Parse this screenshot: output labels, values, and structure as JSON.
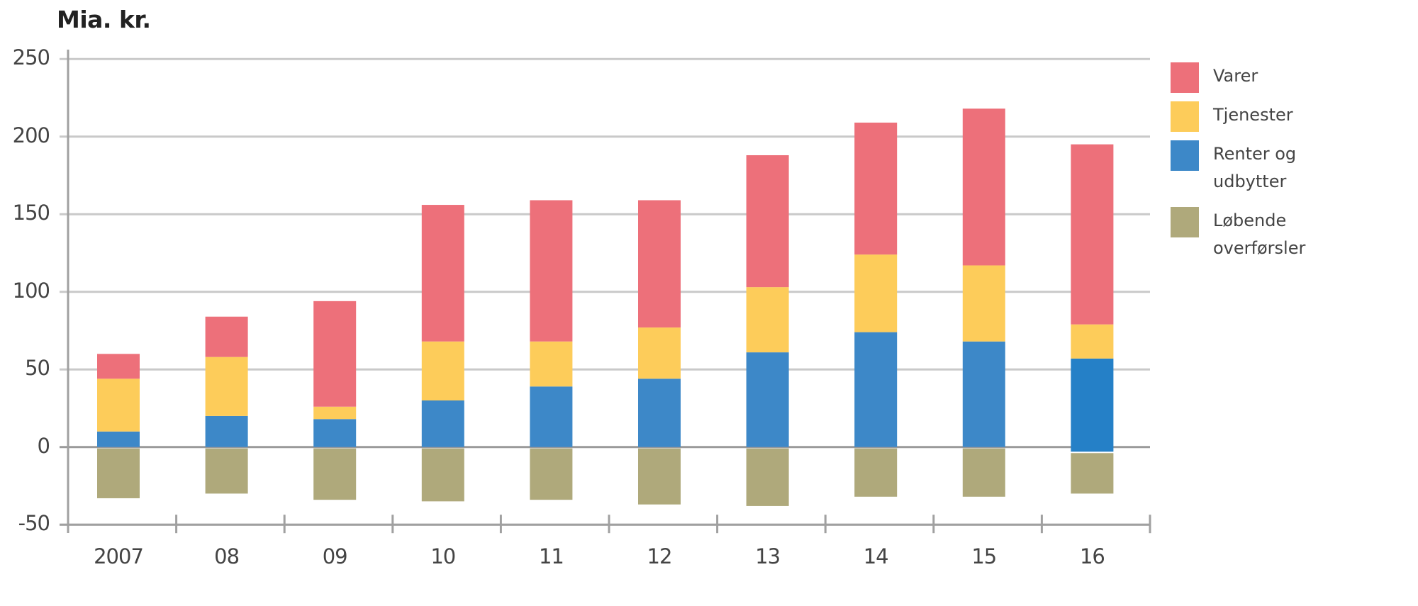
{
  "chart_data": {
    "type": "bar",
    "stacked": true,
    "title": "Mia. kr.",
    "xlabel": "",
    "ylabel": "Mia. kr.",
    "ylim": [
      -50,
      250
    ],
    "yticks": [
      250,
      200,
      150,
      100,
      50,
      0,
      -50
    ],
    "grid": true,
    "legend_position": "right",
    "categories": [
      "2007",
      "08",
      "09",
      "10",
      "11",
      "12",
      "13",
      "14",
      "15",
      "16"
    ],
    "series": [
      {
        "name": "Varer",
        "color": "#ED707A",
        "values": [
          16,
          26,
          68,
          88,
          91,
          82,
          85,
          85,
          101,
          116
        ]
      },
      {
        "name": "Tjenester",
        "color": "#FDCC5A",
        "values": [
          34,
          38,
          8,
          38,
          29,
          33,
          42,
          50,
          49,
          22
        ]
      },
      {
        "name": "Renter og udbytter",
        "color": "#3D88C8",
        "values": [
          10,
          20,
          18,
          30,
          39,
          44,
          61,
          74,
          68,
          57
        ]
      },
      {
        "name": "Løbende overførsler",
        "color": "#AFA97B",
        "values": [
          -33,
          -30,
          -34,
          -35,
          -34,
          -37,
          -38,
          -32,
          -32,
          -30
        ]
      }
    ]
  },
  "header": {
    "title": "Mia. kr."
  },
  "y_axis": {
    "labels": [
      "250",
      "200",
      "150",
      "100",
      "50",
      "0",
      "-50"
    ]
  },
  "x_axis": {
    "labels": [
      "2007",
      "08",
      "09",
      "10",
      "11",
      "12",
      "13",
      "14",
      "15",
      "16"
    ]
  },
  "legend": {
    "items": [
      {
        "label": "Varer",
        "color": "#ED707A"
      },
      {
        "label": "Tjenester",
        "color": "#FDCC5A"
      },
      {
        "label": "Renter og\nudbytter",
        "color": "#3D88C8"
      },
      {
        "label": "Løbende\noverførsler",
        "color": "#AFA97B"
      }
    ]
  },
  "colors": {
    "gridline": "#C9C9C9",
    "axis": "#A0A0A0",
    "text": "#444444"
  }
}
